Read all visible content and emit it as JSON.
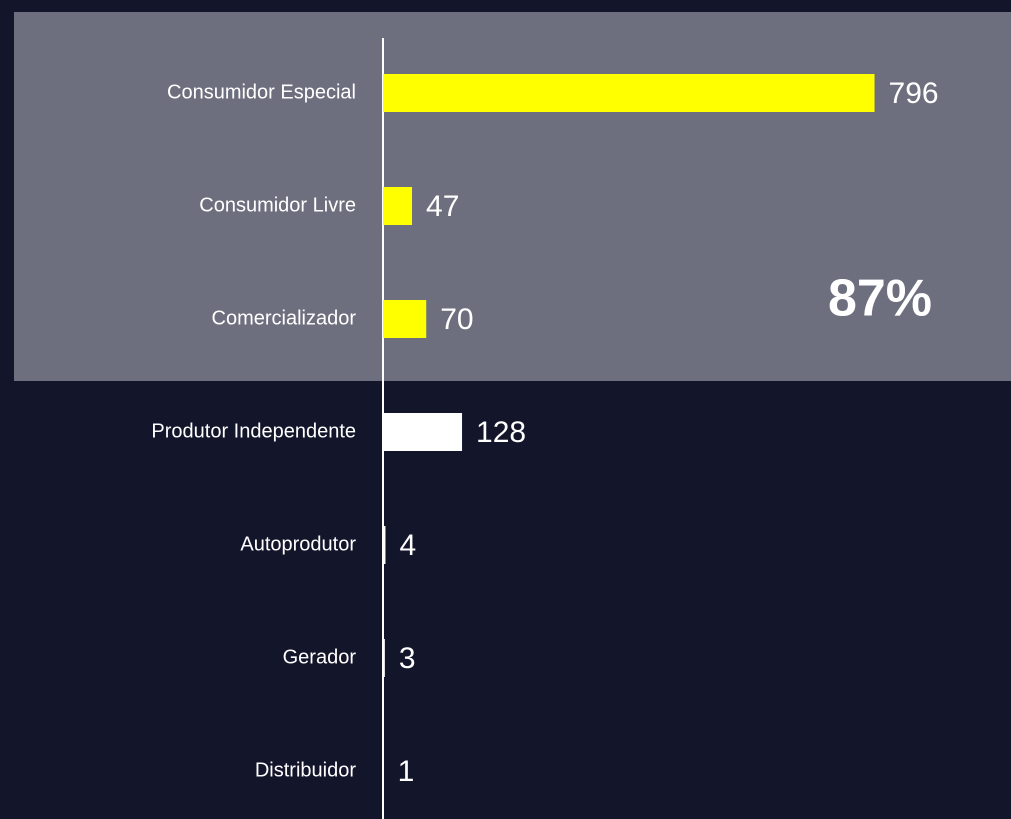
{
  "chart_data": {
    "type": "barh",
    "categories": [
      "Consumidor Especial",
      "Consumidor Livre",
      "Comercializador",
      "Produtor Independente",
      "Autoprodutor",
      "Gerador",
      "Distribuidor"
    ],
    "values": [
      796,
      47,
      70,
      128,
      4,
      3,
      1
    ],
    "colors": [
      "#ffff00",
      "#ffff00",
      "#ffff00",
      "#ffffff",
      "#ffffff",
      "#ffffff",
      "#ffffff"
    ],
    "xlim": [
      0,
      800
    ],
    "annotation": "87%"
  }
}
